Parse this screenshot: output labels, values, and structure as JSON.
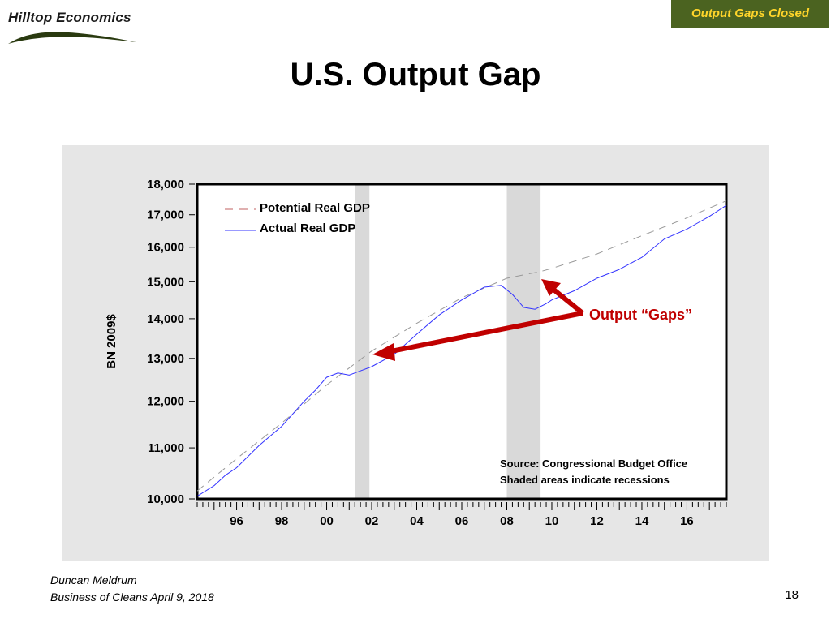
{
  "header": {
    "logo_text": "Hilltop Economics",
    "tag_label": "Output Gaps Closed"
  },
  "slide": {
    "title": "U.S. Output Gap",
    "author": "Duncan Meldrum",
    "event": "Business of Cleans April 9, 2018",
    "page_number": "18"
  },
  "colors": {
    "tag_bg": "#4b6320",
    "tag_text": "#ffd52a",
    "arrow": "#c00000",
    "potential_line": "#999999",
    "actual_line": "#3333ff",
    "recession": "#d9d9d9"
  },
  "chart_data": {
    "type": "line",
    "y_scale": "log",
    "ylabel": "BN 2009$",
    "ylim": [
      10000,
      18000
    ],
    "xlim": [
      1994.25,
      2017.75
    ],
    "y_ticks": [
      10000,
      11000,
      12000,
      13000,
      14000,
      15000,
      16000,
      17000,
      18000
    ],
    "y_tick_labels": [
      "10,000",
      "11,000",
      "12,000",
      "13,000",
      "14,000",
      "15,000",
      "16,000",
      "17,000",
      "18,000"
    ],
    "x_ticks": [
      1996,
      1998,
      2000,
      2002,
      2004,
      2006,
      2008,
      2010,
      2012,
      2014,
      2016
    ],
    "x_tick_labels": [
      "96",
      "98",
      "00",
      "02",
      "04",
      "06",
      "08",
      "10",
      "12",
      "14",
      "16"
    ],
    "recessions": [
      [
        2001.25,
        2001.9
      ],
      [
        2008.0,
        2009.5
      ]
    ],
    "legend_position": "top-left",
    "series": [
      {
        "name": "Potential Real GDP",
        "style": "dashed",
        "x": [
          1994.25,
          1996,
          1998,
          2000,
          2002,
          2004,
          2006,
          2008,
          2009.5,
          2010,
          2012,
          2014,
          2016,
          2017.75
        ],
        "y": [
          10150,
          10780,
          11520,
          12370,
          13180,
          13880,
          14560,
          15100,
          15290,
          15380,
          15800,
          16350,
          16900,
          17450
        ]
      },
      {
        "name": "Actual Real GDP",
        "style": "solid",
        "x": [
          1994.25,
          1995,
          1995.5,
          1996,
          1997,
          1998,
          1999,
          1999.5,
          2000,
          2000.5,
          2001,
          2001.5,
          2002,
          2003,
          2004,
          2005,
          2006,
          2007,
          2007.75,
          2008.25,
          2008.75,
          2009.25,
          2009.75,
          2010,
          2011,
          2012,
          2013,
          2014,
          2015,
          2016,
          2016.5,
          2017,
          2017.75
        ],
        "y": [
          10050,
          10250,
          10450,
          10600,
          11050,
          11450,
          12000,
          12250,
          12550,
          12650,
          12600,
          12700,
          12800,
          13100,
          13600,
          14100,
          14500,
          14850,
          14900,
          14650,
          14300,
          14250,
          14400,
          14500,
          14750,
          15100,
          15350,
          15700,
          16250,
          16550,
          16750,
          16950,
          17300
        ]
      }
    ],
    "annotations": [
      {
        "text": "Output “Gaps”"
      },
      {
        "text": "Source: Congressional Budget Office"
      },
      {
        "text": "Shaded areas indicate recessions"
      }
    ]
  }
}
